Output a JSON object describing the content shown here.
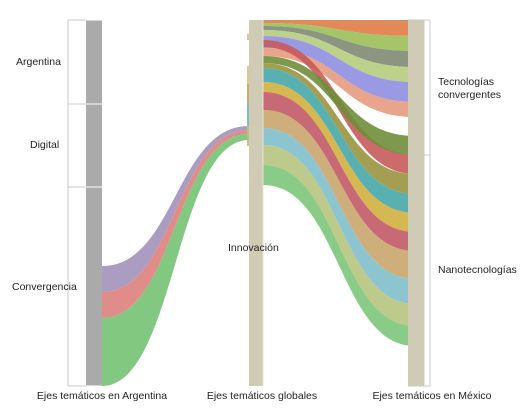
{
  "diagram": {
    "type": "parallel-sets",
    "axes": [
      {
        "key": "argentina",
        "label": "Ejes temáticos en Argentina"
      },
      {
        "key": "global",
        "label": "Ejes temáticos globales"
      },
      {
        "key": "mexico",
        "label": "Ejes temáticos en México"
      }
    ],
    "argentina_categories": [
      {
        "label": "Argentina"
      },
      {
        "label": "Digital"
      },
      {
        "label": "Convergencia"
      }
    ],
    "global_categories": [
      {
        "label": "Innovación"
      }
    ],
    "mexico_categories": [
      {
        "label": "Tecnologías\nconvergentes"
      },
      {
        "label": "Nanotecnologías"
      }
    ],
    "colors": {
      "axis_bar_argentina": "#aaaaaa",
      "axis_bar_global": "#cfcbb5",
      "axis_bar_mexico": "#cfcbb5",
      "bracket": "#c8c8c8"
    }
  }
}
